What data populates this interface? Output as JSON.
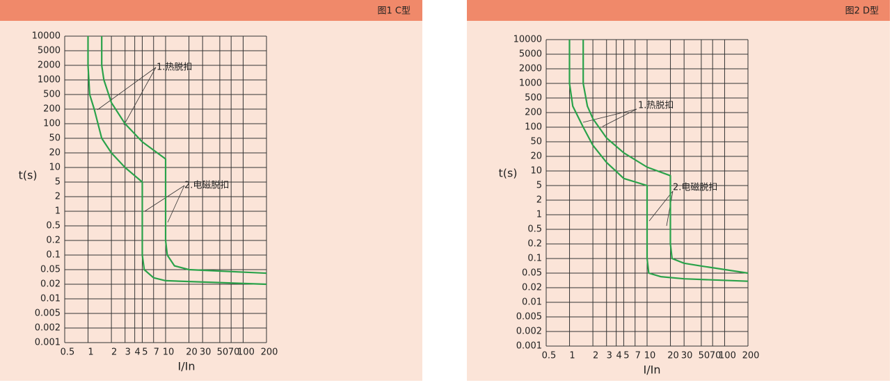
{
  "chart_data": [
    {
      "type": "line",
      "title": "图1  C型",
      "ylabel": "t(s)",
      "xlabel": "I/In",
      "xscale": "log",
      "grid": true,
      "annotations": [
        "1.热脱扣",
        "2.电磁脱扣"
      ],
      "xlim": [
        0.5,
        200
      ],
      "xticks": [
        0.5,
        1,
        2,
        3,
        4,
        5,
        7,
        10,
        20,
        30,
        50,
        70,
        100,
        200
      ],
      "ylim": [
        0.001,
        10000
      ],
      "yticks": [
        10000,
        5000,
        2000,
        1000,
        500,
        200,
        100,
        50,
        20,
        10,
        5,
        2,
        1,
        0.5,
        0.2,
        0.1,
        0.05,
        0.02,
        0.01,
        0.005,
        0.002,
        0.001
      ],
      "series": [
        {
          "color": "#2aa24a",
          "x": [
            1,
            1,
            1.05,
            1.2,
            1.5,
            2,
            3,
            5,
            5,
            5.3,
            7,
            10,
            200
          ],
          "y": [
            10000,
            2000,
            500,
            200,
            50,
            20,
            10,
            5,
            0.1,
            0.05,
            0.03,
            0.025,
            0.02
          ]
        },
        {
          "color": "#2aa24a",
          "x": [
            1.5,
            1.5,
            1.6,
            2,
            3,
            5,
            10,
            10,
            10.5,
            13,
            20,
            200
          ],
          "y": [
            10000,
            2000,
            1000,
            300,
            100,
            40,
            15,
            0.2,
            0.1,
            0.06,
            0.05,
            0.04
          ]
        }
      ]
    },
    {
      "type": "line",
      "title": "图2  D型",
      "ylabel": "t(s)",
      "xlabel": "I/In",
      "xscale": "log",
      "grid": true,
      "annotations": [
        "1.热脱扣",
        "2.电磁脱扣"
      ],
      "xlim": [
        0.5,
        200
      ],
      "xticks": [
        0.5,
        1,
        2,
        3,
        4,
        5,
        7,
        10,
        20,
        30,
        50,
        70,
        100,
        200
      ],
      "ylim": [
        0.001,
        10000
      ],
      "yticks": [
        10000,
        5000,
        2000,
        1000,
        500,
        200,
        100,
        50,
        20,
        10,
        5,
        2,
        1,
        0.5,
        0.2,
        0.1,
        0.05,
        0.02,
        0.01,
        0.005,
        0.002,
        0.001
      ],
      "series": [
        {
          "color": "#2aa24a",
          "x": [
            1,
            1,
            1.1,
            1.5,
            2,
            3,
            5,
            10,
            10,
            10.5,
            15,
            30,
            200
          ],
          "y": [
            10000,
            1000,
            300,
            100,
            40,
            15,
            7,
            5,
            0.1,
            0.05,
            0.04,
            0.035,
            0.03
          ]
        },
        {
          "color": "#2aa24a",
          "x": [
            1.5,
            1.5,
            1.7,
            2,
            3,
            5,
            10,
            20,
            20,
            21,
            30,
            50,
            200
          ],
          "y": [
            10000,
            1000,
            300,
            150,
            60,
            25,
            12,
            8,
            0.2,
            0.1,
            0.08,
            0.07,
            0.05
          ]
        }
      ]
    }
  ]
}
